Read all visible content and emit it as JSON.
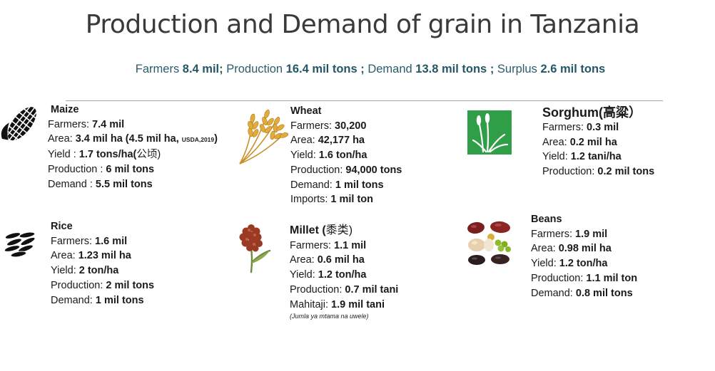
{
  "title": "Production and Demand of grain in Tanzania",
  "summary": {
    "farmers_label": "Farmers ",
    "farmers_value": "8.4 mil;",
    "production_label": " Production ",
    "production_value": "16.4 mil tons ;",
    "demand_label": " Demand ",
    "demand_value": "13.8 mil tons ;",
    "surplus_label": " Surplus ",
    "surplus_value": "2.6 mil tons"
  },
  "maize": {
    "name": "Maize",
    "farmers_label": "Farmers: ",
    "farmers": "7.4 mil",
    "area_label": "Area: ",
    "area": "3.4 mil ha (4.5 mil ha, ",
    "area_source": "USDA,2019",
    "area_close": ")",
    "yield_label": "Yield : ",
    "yield": "1.7 tons/ha(",
    "yield_unit": "公顷",
    "yield_close": ")",
    "production_label": "Production : ",
    "production": "6 mil tons",
    "demand_label": "Demand : ",
    "demand": "5.5 mil tons"
  },
  "wheat": {
    "name": "Wheat",
    "farmers_label": "Farmers: ",
    "farmers": "30,200",
    "area_label": "Area: ",
    "area": "42,177 ha",
    "yield_label": "Yield: ",
    "yield": "1.6 ton/ha",
    "production_label": "Production: ",
    "production": "94,000 tons",
    "demand_label": "Demand: ",
    "demand": "1 mil tons",
    "imports_label": "Imports: ",
    "imports": "1 mil ton"
  },
  "sorghum": {
    "name": "Sorghum(高粱）",
    "farmers_label": "Farmers: ",
    "farmers": "0.3 mil",
    "area_label": "Area: ",
    "area": "0.2 mil ha",
    "yield_label": "Yield: ",
    "yield": "1.2 tani/ha",
    "production_label": "Production: ",
    "production": "0.2 mil tons"
  },
  "rice": {
    "name": "Rice",
    "farmers_label": "Farmers: ",
    "farmers": "1.6 mil",
    "area_label": "Area: ",
    "area": "1.23 mil ha",
    "yield_label": "Yield: ",
    "yield": "2 ton/ha",
    "production_label": "Production: ",
    "production": "2 mil tons",
    "demand_label": "Demand: ",
    "demand": "1 mil tons"
  },
  "millet": {
    "name": "Millet (",
    "name_cn": "黍类",
    "name_close": ")",
    "farmers_label": "Farmers: ",
    "farmers": "1.1 mil",
    "area_label": "Area: ",
    "area": "0.6 mil ha",
    "yield_label": "Yield: ",
    "yield": "1.2 ton/ha",
    "production_label": "Production: ",
    "production": "0.7 mil tani",
    "demand_label": "Mahitaji: ",
    "demand": "1.9 mil tani",
    "note": "(Jumla ya mtama na uwele)"
  },
  "beans": {
    "name": "Beans",
    "farmers_label": "Farmers: ",
    "farmers": "1.9 mil",
    "area_label": "Area: ",
    "area": "0.98 mil ha",
    "yield_label": "Yield: ",
    "yield": "1.2 ton/ha",
    "production_label": "Production: ",
    "production": "1.1 mil ton",
    "demand_label": "Demand: ",
    "demand": "0.8 mil tons"
  },
  "colors": {
    "summary": "#2b5d6b",
    "sorghum_icon_bg": "#2f9e46"
  },
  "icons": [
    "maize-icon",
    "wheat-icon",
    "sorghum-icon",
    "rice-icon",
    "millet-icon",
    "beans-icon"
  ]
}
